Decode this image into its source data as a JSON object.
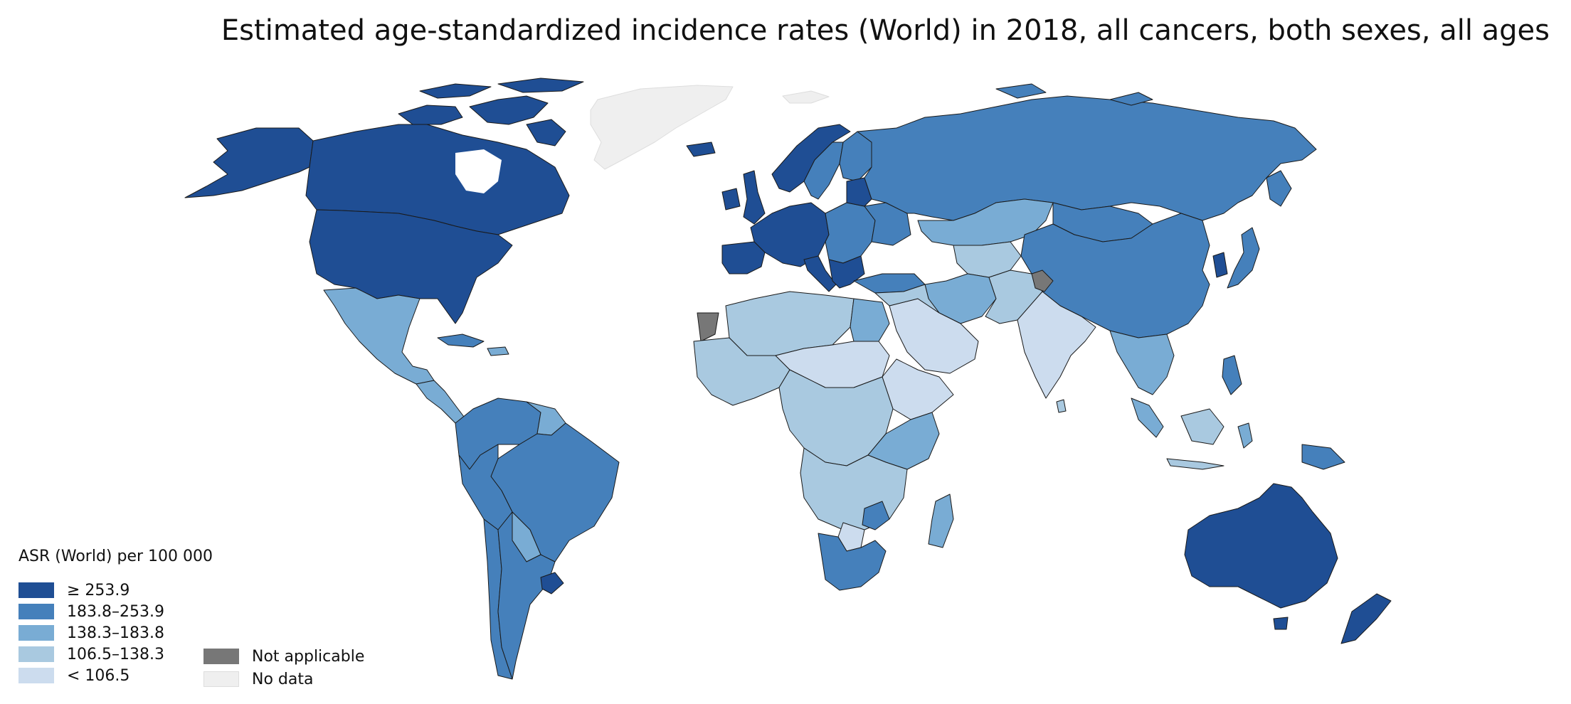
{
  "title": "Estimated age-standardized incidence rates (World) in 2018, all cancers, both sexes, all ages",
  "legend": {
    "heading": "ASR (World) per 100 000",
    "classes": [
      {
        "label": "≥ 253.9",
        "color": "#1f4e94",
        "class_id": "c5"
      },
      {
        "label": "183.8–253.9",
        "color": "#4580bb",
        "class_id": "c4"
      },
      {
        "label": "138.3–183.8",
        "color": "#79acd4",
        "class_id": "c3"
      },
      {
        "label": "106.5–138.3",
        "color": "#a9c9e0",
        "class_id": "c2"
      },
      {
        "label": "< 106.5",
        "color": "#ccdcee",
        "class_id": "c1"
      }
    ],
    "extra": [
      {
        "label": "Not applicable",
        "color": "#777777",
        "class_id": "na"
      },
      {
        "label": "No data",
        "color": "#efefef",
        "class_id": "nd"
      }
    ]
  },
  "colors": {
    "border": "#1a1a1a",
    "no_data_border": "#dddddd",
    "background": "#ffffff"
  }
}
